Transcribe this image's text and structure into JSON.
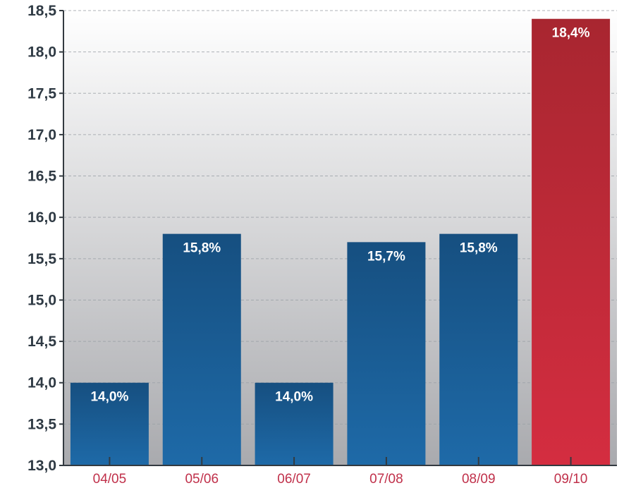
{
  "chart_data": {
    "type": "bar",
    "categories": [
      "04/05",
      "05/06",
      "06/07",
      "07/08",
      "08/09",
      "09/10"
    ],
    "values": [
      14.0,
      15.8,
      14.0,
      15.7,
      15.8,
      18.4
    ],
    "data_labels": [
      "14,0%",
      "15,8%",
      "14,0%",
      "15,7%",
      "15,8%",
      "18,4%"
    ],
    "ylim": [
      13.0,
      18.5
    ],
    "yticks": [
      13.0,
      13.5,
      14.0,
      14.5,
      15.0,
      15.5,
      16.0,
      16.5,
      17.0,
      17.5,
      18.0,
      18.5
    ],
    "ytick_labels": [
      "13,0",
      "13,5",
      "14,0",
      "14,5",
      "15,0",
      "15,5",
      "16,0",
      "16,5",
      "17,0",
      "17,5",
      "18,0",
      "18,5"
    ],
    "grid": true,
    "title": "",
    "xlabel": "",
    "ylabel": "",
    "colors": {
      "bar_default": "#1a5c94",
      "bar_highlight": "#c8283a",
      "x_tick_text": "#c0304a",
      "y_tick_text": "#2f3a44",
      "background_top": "#ffffff",
      "background_bottom": "#a9aaae"
    },
    "highlight_index": 5
  }
}
